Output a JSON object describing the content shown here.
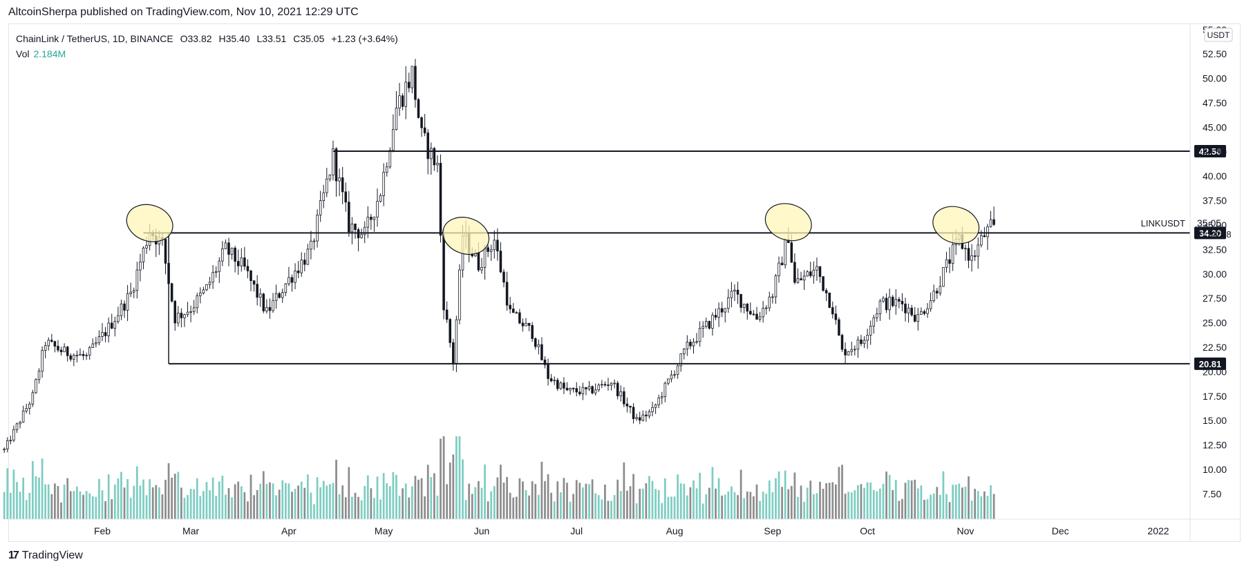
{
  "header": {
    "published": "AltcoinSherpa published on TradingView.com, Nov 10, 2021 12:29 UTC"
  },
  "legend": {
    "symbol": "ChainLink / TetherUS, 1D, BINANCE",
    "open": "O33.82",
    "high": "H35.40",
    "low": "L33.51",
    "close": "C35.05",
    "change": "+1.23 (+3.64%)",
    "vol_label": "Vol",
    "vol_value": "2.184M"
  },
  "footer": {
    "brand": "TradingView",
    "logo_glyph": "17"
  },
  "chart_data": {
    "type": "candlestick",
    "currency": "USDT",
    "symbol_label": "LINKUSDT",
    "last_price": "35.05",
    "countdown": "11:30:58",
    "y_ticks": [
      "55.00",
      "52.50",
      "50.00",
      "47.50",
      "45.00",
      "42.50",
      "40.00",
      "37.50",
      "35.00",
      "32.50",
      "30.00",
      "27.50",
      "25.00",
      "22.50",
      "20.00",
      "17.50",
      "15.00",
      "12.50",
      "10.00",
      "7.50"
    ],
    "y_tick_values": [
      55,
      52.5,
      50,
      47.5,
      45,
      42.5,
      40,
      37.5,
      35,
      32.5,
      30,
      27.5,
      25,
      22.5,
      20,
      17.5,
      15,
      12.5,
      10,
      7.5
    ],
    "ylim": [
      5,
      55.5
    ],
    "x_ticks": [
      "Feb",
      "Mar",
      "Apr",
      "May",
      "Jun",
      "Jul",
      "Aug",
      "Sep",
      "Oct",
      "Nov",
      "Dec",
      "2022"
    ],
    "x_tick_dates": [
      "2021-02-01",
      "2021-03-01",
      "2021-04-01",
      "2021-05-01",
      "2021-06-01",
      "2021-07-01",
      "2021-08-01",
      "2021-09-01",
      "2021-10-01",
      "2021-11-01",
      "2021-12-01",
      "2022-01-01"
    ],
    "horizontal_levels": [
      {
        "label": "42.56",
        "value": 42.56,
        "from": "2021-04-15",
        "color": "#131722"
      },
      {
        "label": "34.20",
        "value": 34.2,
        "from": "2021-02-14",
        "color": "#131722"
      },
      {
        "label": "20.81",
        "value": 20.81,
        "from": "2021-02-22",
        "color": "#131722"
      }
    ],
    "highlights": [
      {
        "date": "2021-02-16",
        "value": 35.2
      },
      {
        "date": "2021-05-27",
        "value": 33.9
      },
      {
        "date": "2021-09-06",
        "value": 35.3
      },
      {
        "date": "2021-10-29",
        "value": 35.0
      }
    ],
    "colors": {
      "up": "#131722",
      "down": "#131722",
      "vol_up": "#7dcdc2",
      "vol_down": "#8c8c8c",
      "highlight": "#fff5b8"
    },
    "anchors": [
      [
        "2021-01-01",
        12.0
      ],
      [
        "2021-01-10",
        17.5
      ],
      [
        "2021-01-14",
        23.0
      ],
      [
        "2021-01-20",
        22.0
      ],
      [
        "2021-01-27",
        21.5
      ],
      [
        "2021-02-03",
        24.5
      ],
      [
        "2021-02-10",
        28.0
      ],
      [
        "2021-02-16",
        34.5
      ],
      [
        "2021-02-20",
        33.0
      ],
      [
        "2021-02-24",
        25.5
      ],
      [
        "2021-03-01",
        26.5
      ],
      [
        "2021-03-06",
        28.5
      ],
      [
        "2021-03-12",
        32.5
      ],
      [
        "2021-03-18",
        30.5
      ],
      [
        "2021-03-25",
        26.0
      ],
      [
        "2021-03-31",
        29.0
      ],
      [
        "2021-04-08",
        32.5
      ],
      [
        "2021-04-15",
        42.0
      ],
      [
        "2021-04-20",
        35.0
      ],
      [
        "2021-04-25",
        34.0
      ],
      [
        "2021-04-30",
        38.5
      ],
      [
        "2021-05-05",
        47.0
      ],
      [
        "2021-05-10",
        50.5
      ],
      [
        "2021-05-13",
        44.0
      ],
      [
        "2021-05-18",
        41.0
      ],
      [
        "2021-05-20",
        27.0
      ],
      [
        "2021-05-23",
        21.0
      ],
      [
        "2021-05-26",
        34.0
      ],
      [
        "2021-05-31",
        31.0
      ],
      [
        "2021-06-05",
        33.5
      ],
      [
        "2021-06-10",
        26.0
      ],
      [
        "2021-06-17",
        24.0
      ],
      [
        "2021-06-22",
        19.5
      ],
      [
        "2021-06-28",
        18.0
      ],
      [
        "2021-07-05",
        18.0
      ],
      [
        "2021-07-12",
        19.0
      ],
      [
        "2021-07-20",
        15.0
      ],
      [
        "2021-07-25",
        16.0
      ],
      [
        "2021-07-30",
        19.0
      ],
      [
        "2021-08-05",
        22.5
      ],
      [
        "2021-08-12",
        25.0
      ],
      [
        "2021-08-20",
        28.0
      ],
      [
        "2021-08-27",
        25.5
      ],
      [
        "2021-09-01",
        28.0
      ],
      [
        "2021-09-06",
        34.0
      ],
      [
        "2021-09-08",
        29.0
      ],
      [
        "2021-09-15",
        30.5
      ],
      [
        "2021-09-20",
        26.5
      ],
      [
        "2021-09-23",
        22.0
      ],
      [
        "2021-09-29",
        23.0
      ],
      [
        "2021-10-05",
        27.0
      ],
      [
        "2021-10-12",
        27.0
      ],
      [
        "2021-10-17",
        25.5
      ],
      [
        "2021-10-22",
        28.0
      ],
      [
        "2021-10-27",
        31.5
      ],
      [
        "2021-10-30",
        33.5
      ],
      [
        "2021-11-03",
        31.5
      ],
      [
        "2021-11-07",
        34.0
      ],
      [
        "2021-11-10",
        35.05
      ]
    ]
  }
}
